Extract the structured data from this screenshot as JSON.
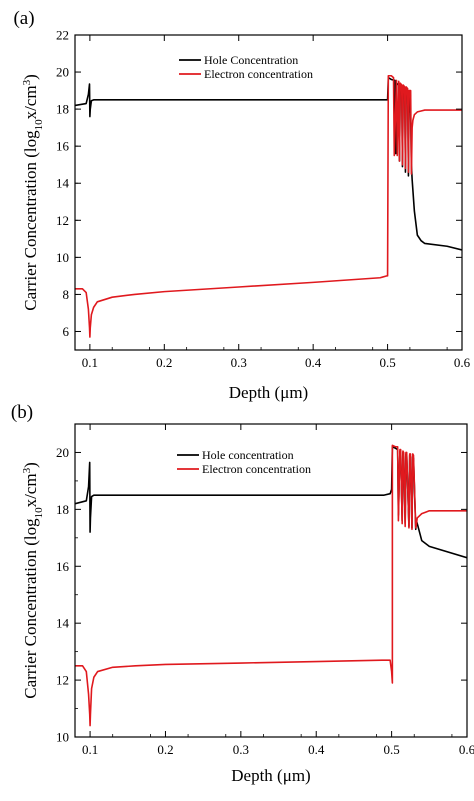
{
  "chart_data": [
    {
      "type": "line",
      "panel_label": "(a)",
      "xlabel": "Depth (μm)",
      "ylabel_main": "Carrier Concentration (log",
      "ylabel_sub": "10",
      "ylabel_mid": "x/cm",
      "ylabel_sup": "3",
      "ylabel_end": ")",
      "xlim": [
        0.08,
        0.6
      ],
      "ylim": [
        5,
        22
      ],
      "xticks": [
        0.1,
        0.2,
        0.3,
        0.4,
        0.5,
        0.6
      ],
      "xtick_labels": [
        "0.1",
        "0.2",
        "0.3",
        "0.4",
        "0.5",
        "0.6"
      ],
      "yticks": [
        6,
        8,
        10,
        12,
        14,
        16,
        18,
        20,
        22
      ],
      "ytick_labels": [
        "6",
        "8",
        "10",
        "12",
        "14",
        "16",
        "18",
        "20",
        "22"
      ],
      "legend_position": "top-center",
      "series": [
        {
          "name": "Hole Concentration",
          "color": "#000000",
          "x": [
            0.08,
            0.095,
            0.098,
            0.0995,
            0.1,
            0.1005,
            0.102,
            0.105,
            0.11,
            0.2,
            0.3,
            0.4,
            0.49,
            0.499,
            0.5,
            0.501,
            0.505,
            0.51,
            0.511,
            0.512,
            0.515,
            0.516,
            0.517,
            0.519,
            0.52,
            0.521,
            0.523,
            0.524,
            0.525,
            0.527,
            0.528,
            0.529,
            0.531,
            0.532,
            0.533,
            0.536,
            0.54,
            0.545,
            0.55,
            0.58,
            0.6
          ],
          "y": [
            18.2,
            18.3,
            18.8,
            19.35,
            17.6,
            18.0,
            18.45,
            18.5,
            18.5,
            18.5,
            18.5,
            18.5,
            18.5,
            18.5,
            18.5,
            19.7,
            19.6,
            19.55,
            15.6,
            19.4,
            19.3,
            15.2,
            19.3,
            19.2,
            14.9,
            19.2,
            19.1,
            14.6,
            19.1,
            19.0,
            14.4,
            18.9,
            17.8,
            15.0,
            14.2,
            12.5,
            11.2,
            10.9,
            10.75,
            10.6,
            10.4
          ]
        },
        {
          "name": "Electron concentration",
          "color": "#e0191e",
          "x": [
            0.08,
            0.09,
            0.095,
            0.098,
            0.0995,
            0.1,
            0.1005,
            0.102,
            0.105,
            0.11,
            0.13,
            0.16,
            0.2,
            0.3,
            0.4,
            0.49,
            0.499,
            0.5,
            0.501,
            0.505,
            0.508,
            0.509,
            0.512,
            0.513,
            0.515,
            0.516,
            0.517,
            0.519,
            0.52,
            0.521,
            0.523,
            0.524,
            0.525,
            0.527,
            0.528,
            0.529,
            0.531,
            0.532,
            0.533,
            0.534,
            0.536,
            0.54,
            0.545,
            0.55,
            0.6
          ],
          "y": [
            8.3,
            8.3,
            8.1,
            7.2,
            6.2,
            5.7,
            6.2,
            6.9,
            7.3,
            7.6,
            7.85,
            8.0,
            8.15,
            8.4,
            8.65,
            8.9,
            9.0,
            9.0,
            19.8,
            19.8,
            19.7,
            15.5,
            19.55,
            15.5,
            19.5,
            15.2,
            19.4,
            19.3,
            15.0,
            19.3,
            19.2,
            14.8,
            19.2,
            19.1,
            14.6,
            19.0,
            19.0,
            14.5,
            17.0,
            17.4,
            17.7,
            17.85,
            17.9,
            17.95,
            17.95
          ]
        }
      ]
    },
    {
      "type": "line",
      "panel_label": "(b)",
      "xlabel": "Depth (μm)",
      "ylabel_main": "Carrier Concentration (log",
      "ylabel_sub": "10",
      "ylabel_mid": "x/cm",
      "ylabel_sup": "3",
      "ylabel_end": ")",
      "xlim": [
        0.08,
        0.6
      ],
      "ylim": [
        10,
        21
      ],
      "xticks": [
        0.1,
        0.2,
        0.3,
        0.4,
        0.5,
        0.6
      ],
      "xtick_labels": [
        "0.1",
        "0.2",
        "0.3",
        "0.4",
        "0.5",
        "0.6"
      ],
      "yticks": [
        10,
        12,
        14,
        16,
        18,
        20
      ],
      "ytick_labels": [
        "10",
        "12",
        "14",
        "16",
        "18",
        "20"
      ],
      "legend_position": "top-center",
      "series": [
        {
          "name": "Hole concentration",
          "color": "#000000",
          "x": [
            0.08,
            0.095,
            0.098,
            0.0995,
            0.1,
            0.1005,
            0.102,
            0.105,
            0.11,
            0.2,
            0.3,
            0.4,
            0.49,
            0.498,
            0.5,
            0.501,
            0.505,
            0.508,
            0.509,
            0.511,
            0.512,
            0.514,
            0.515,
            0.516,
            0.518,
            0.519,
            0.52,
            0.523,
            0.524,
            0.525,
            0.527,
            0.528,
            0.529,
            0.532,
            0.533,
            0.534,
            0.538,
            0.54,
            0.545,
            0.55,
            0.6
          ],
          "y": [
            18.2,
            18.3,
            18.8,
            19.65,
            17.2,
            17.7,
            18.45,
            18.5,
            18.5,
            18.5,
            18.5,
            18.5,
            18.5,
            18.55,
            18.7,
            20.2,
            20.15,
            20.1,
            17.8,
            20.05,
            20.0,
            17.6,
            20.0,
            19.95,
            17.5,
            19.95,
            19.9,
            17.4,
            19.9,
            19.85,
            17.35,
            19.85,
            19.8,
            17.3,
            17.6,
            17.5,
            17.1,
            16.9,
            16.8,
            16.7,
            16.3
          ]
        },
        {
          "name": "Electron concentration",
          "color": "#e0191e",
          "x": [
            0.08,
            0.09,
            0.095,
            0.098,
            0.0995,
            0.1,
            0.1005,
            0.102,
            0.105,
            0.11,
            0.13,
            0.16,
            0.2,
            0.3,
            0.4,
            0.49,
            0.498,
            0.5,
            0.501,
            0.501,
            0.505,
            0.508,
            0.509,
            0.511,
            0.512,
            0.514,
            0.515,
            0.516,
            0.518,
            0.519,
            0.52,
            0.523,
            0.524,
            0.525,
            0.527,
            0.528,
            0.529,
            0.532,
            0.533,
            0.534,
            0.538,
            0.54,
            0.545,
            0.55,
            0.6
          ],
          "y": [
            12.5,
            12.5,
            12.3,
            11.5,
            10.8,
            10.4,
            10.8,
            11.7,
            12.1,
            12.3,
            12.45,
            12.5,
            12.55,
            12.6,
            12.65,
            12.7,
            12.7,
            12.3,
            11.9,
            20.25,
            20.2,
            20.2,
            17.6,
            20.1,
            20.1,
            17.5,
            20.05,
            20.0,
            17.4,
            20.0,
            20.0,
            17.35,
            19.95,
            19.95,
            17.3,
            19.95,
            19.9,
            17.35,
            17.5,
            17.7,
            17.8,
            17.85,
            17.9,
            17.95,
            17.95
          ]
        }
      ]
    }
  ]
}
